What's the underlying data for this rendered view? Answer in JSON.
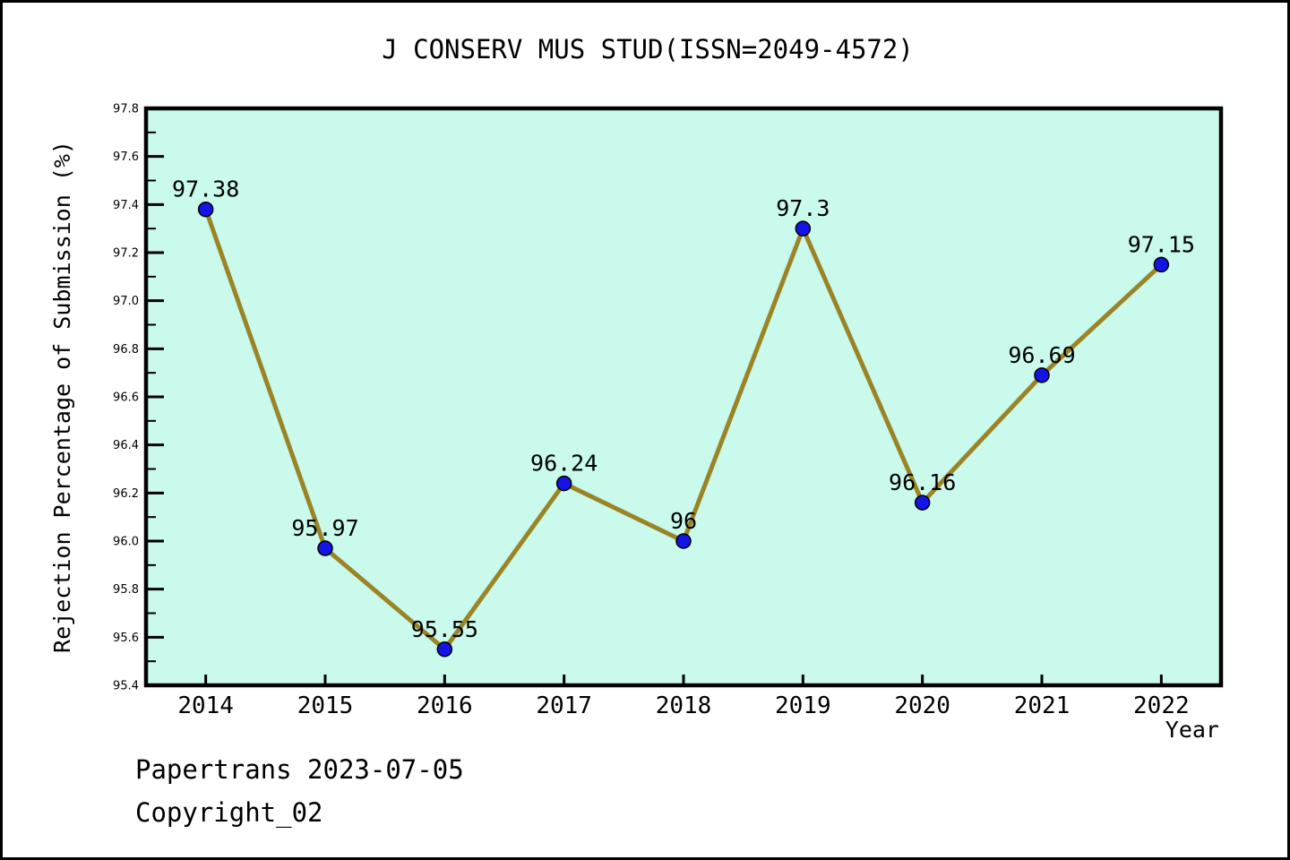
{
  "chart_data": {
    "type": "line",
    "title": "J CONSERV MUS STUD(ISSN=2049-4572)",
    "xlabel": "Year",
    "ylabel": "Rejection Percentage of Submission (%)",
    "categories": [
      "2014",
      "2015",
      "2016",
      "2017",
      "2018",
      "2019",
      "2020",
      "2021",
      "2022"
    ],
    "values": [
      97.38,
      95.97,
      95.55,
      96.24,
      96,
      97.3,
      96.16,
      96.69,
      97.15
    ],
    "point_labels": [
      "97.38",
      "95.97",
      "95.55",
      "96.24",
      "96",
      "97.3",
      "96.16",
      "96.69",
      "97.15"
    ],
    "ylim": [
      95.4,
      97.8
    ],
    "ytick_labels": [
      "95.4",
      "95.6",
      "95.8",
      "96.0",
      "96.2",
      "96.4",
      "96.6",
      "96.8",
      "97.0",
      "97.2",
      "97.4",
      "97.6",
      "97.8"
    ],
    "ytick_major_step": 0.2,
    "ytick_minor_step": 0.1,
    "grid": false,
    "legend": null,
    "colors": {
      "plot_background": "#c9faec",
      "page_background": "#ffffff",
      "line": "#9a8425",
      "marker_fill": "#1414e6",
      "marker_edge": "#000000",
      "axis": "#000000",
      "text": "#000000"
    }
  },
  "footer": {
    "line1": "Papertrans 2023-07-05",
    "line2": "Copyright_02"
  }
}
